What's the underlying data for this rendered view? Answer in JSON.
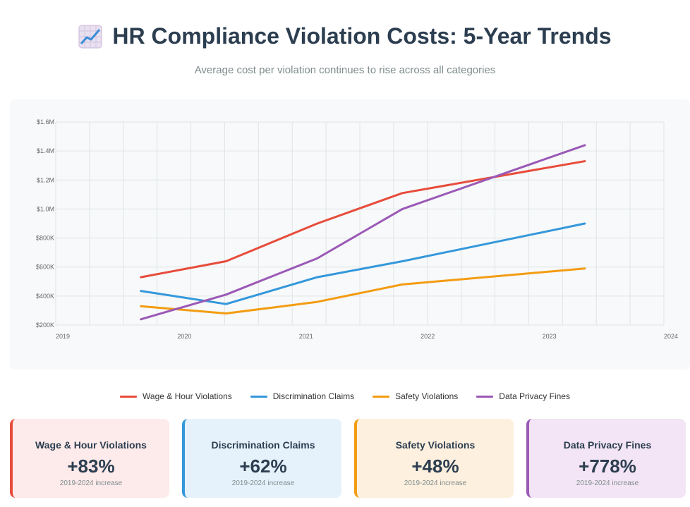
{
  "header": {
    "title": "HR Compliance Violation Costs: 5-Year Trends",
    "subtitle": "Average cost per violation continues to rise across all categories"
  },
  "chart_data": {
    "type": "line",
    "x_tick_labels": [
      "2019",
      "2020",
      "2021",
      "2022",
      "2023",
      "2024"
    ],
    "y_tick_labels": [
      "$200K",
      "$400K",
      "$600K",
      "$800K",
      "$1.0M",
      "$1.2M",
      "$1.4M",
      "$1.6M"
    ],
    "ylim": [
      200000,
      1600000
    ],
    "xlim": [
      2019,
      2024
    ],
    "x": [
      2019.7,
      2020.4,
      2021.15,
      2021.85,
      2023.35
    ],
    "grid": true,
    "series": [
      {
        "name": "Wage & Hour Violations",
        "color": "#e74c3c",
        "values": [
          530000,
          640000,
          900000,
          1110000,
          1330000
        ]
      },
      {
        "name": "Discrimination Claims",
        "color": "#3498db",
        "values": [
          435000,
          345000,
          530000,
          640000,
          900000
        ]
      },
      {
        "name": "Safety Violations",
        "color": "#f39c12",
        "values": [
          330000,
          280000,
          360000,
          480000,
          590000
        ]
      },
      {
        "name": "Data Privacy Fines",
        "color": "#9b59b6",
        "values": [
          240000,
          410000,
          660000,
          1000000,
          1440000
        ]
      }
    ]
  },
  "legend": [
    {
      "label": "Wage & Hour Violations",
      "color": "#e74c3c"
    },
    {
      "label": "Discrimination Claims",
      "color": "#3498db"
    },
    {
      "label": "Safety Violations",
      "color": "#f39c12"
    },
    {
      "label": "Data Privacy Fines",
      "color": "#9b59b6"
    }
  ],
  "cards": [
    {
      "title": "Wage & Hour Violations",
      "value": "+83%",
      "note": "2019-2024 increase",
      "bg": "#fdeaea",
      "accent": "#e74c3c"
    },
    {
      "title": "Discrimination Claims",
      "value": "+62%",
      "note": "2019-2024 increase",
      "bg": "#e6f2fb",
      "accent": "#3498db"
    },
    {
      "title": "Safety Violations",
      "value": "+48%",
      "note": "2019-2024 increase",
      "bg": "#fdf0de",
      "accent": "#f39c12"
    },
    {
      "title": "Data Privacy Fines",
      "value": "+778%",
      "note": "2019-2024 increase",
      "bg": "#f3e5f5",
      "accent": "#9b59b6"
    }
  ]
}
